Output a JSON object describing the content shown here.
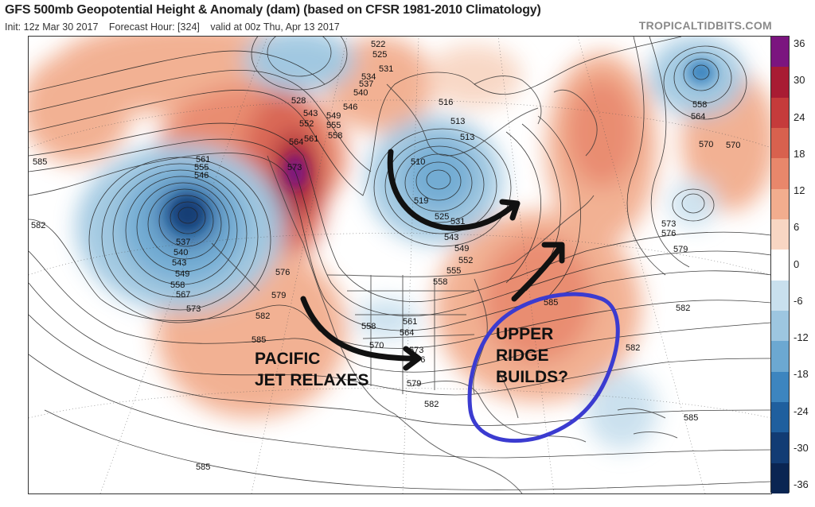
{
  "header": {
    "title": "GFS 500mb Geopotential Height & Anomaly (dam) (based on CFSR 1981-2010 Climatology)",
    "init": "Init: 12z Mar 30 2017",
    "forecast_hour": "Forecast Hour: [324]",
    "valid": "valid at 00z Thu, Apr 13 2017",
    "source": "TROPICALTIDBITS.COM"
  },
  "colorbar": {
    "labels": [
      "36",
      "30",
      "24",
      "18",
      "12",
      "6",
      "0",
      "-6",
      "-12",
      "-18",
      "-24",
      "-30",
      "-36"
    ],
    "colors": [
      "#7b157f",
      "#a81c33",
      "#c53b3b",
      "#d8614e",
      "#e8876b",
      "#f2ad8e",
      "#f8d6c3",
      "#ffffff",
      "#c9e0ee",
      "#9dc6e0",
      "#6ca8d1",
      "#3d85bf",
      "#1f5f9e",
      "#123c74",
      "#0a2552"
    ]
  },
  "map": {
    "contour_labels": [
      {
        "text": "522"
      },
      {
        "text": "525"
      },
      {
        "text": "528"
      },
      {
        "text": "531"
      },
      {
        "text": "534"
      },
      {
        "text": "537"
      },
      {
        "text": "540"
      },
      {
        "text": "543"
      },
      {
        "text": "546"
      },
      {
        "text": "549"
      },
      {
        "text": "552"
      },
      {
        "text": "555"
      },
      {
        "text": "558"
      },
      {
        "text": "561"
      },
      {
        "text": "564"
      },
      {
        "text": "567"
      },
      {
        "text": "570"
      },
      {
        "text": "573"
      },
      {
        "text": "576"
      },
      {
        "text": "579"
      },
      {
        "text": "582"
      },
      {
        "text": "585"
      },
      {
        "text": "516"
      },
      {
        "text": "519"
      },
      {
        "text": "510"
      },
      {
        "text": "513"
      }
    ]
  },
  "annotations": {
    "pacific_jet": [
      "PACIFIC",
      "JET RELAXES"
    ],
    "upper_ridge": [
      "UPPER",
      "RIDGE",
      "BUILDS?"
    ]
  }
}
